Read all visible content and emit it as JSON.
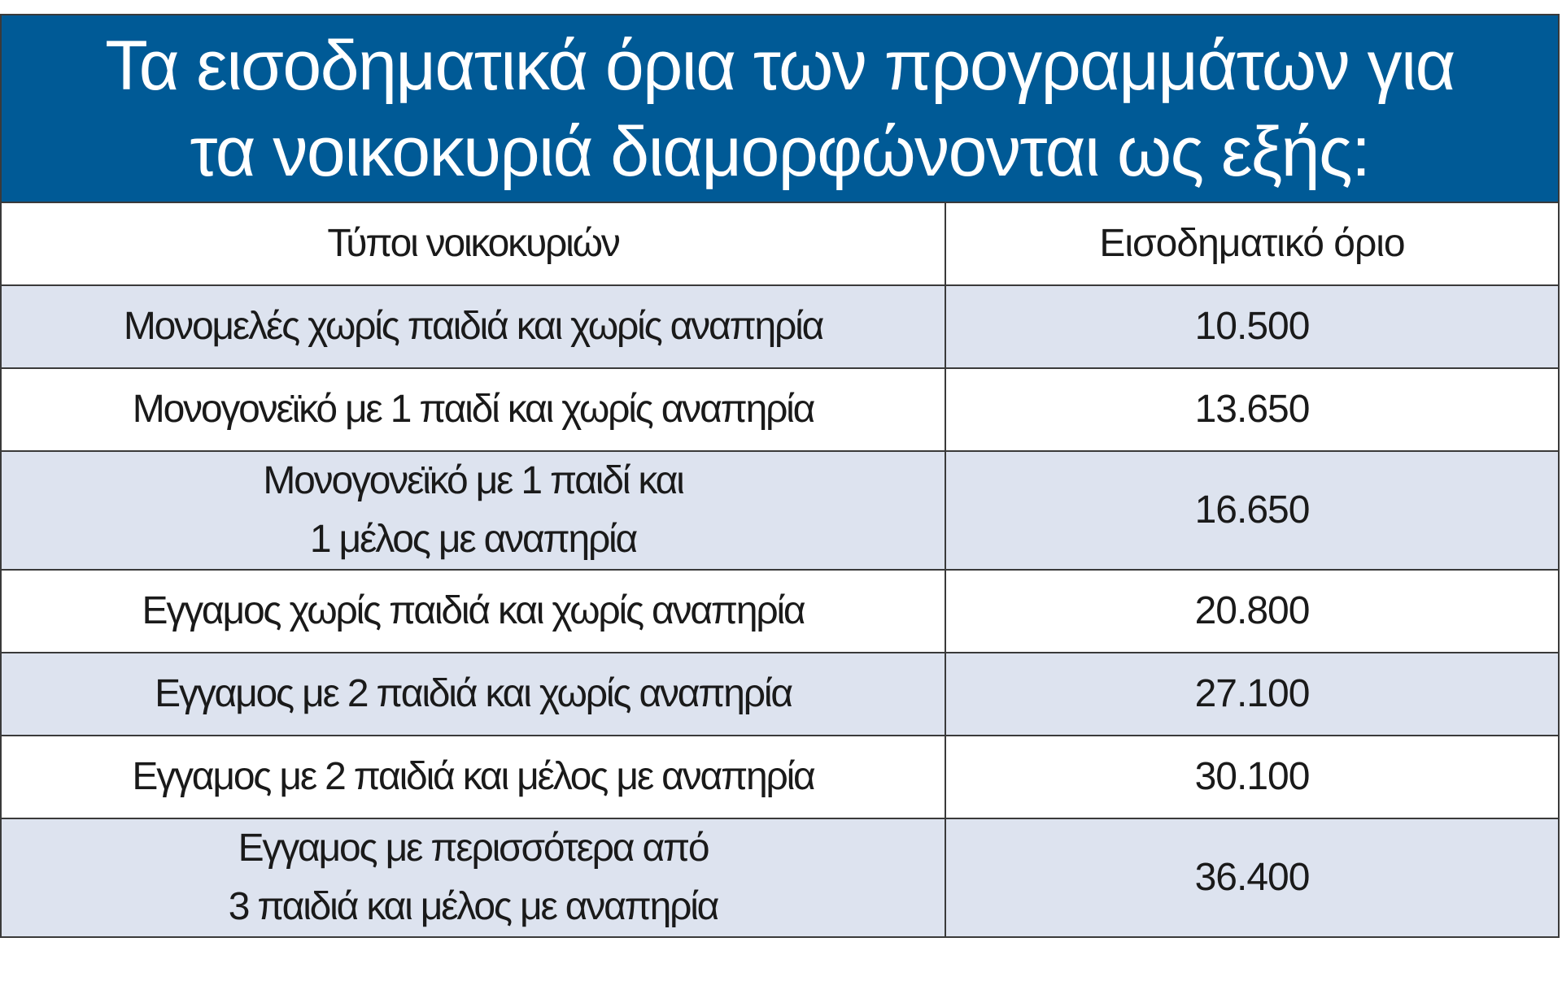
{
  "title": {
    "line1": "Τα εισοδηματικά όρια των προγραμμάτων για",
    "line2": "τα νοικοκυριά διαμορφώνονται ως εξής:"
  },
  "table": {
    "headers": [
      "Τύποι νοικοκυριών",
      "Εισοδηματικό όριο"
    ],
    "rows": [
      {
        "type_lines": [
          "Μονομελές χωρίς παιδιά και χωρίς αναπηρία"
        ],
        "limit": "10.500"
      },
      {
        "type_lines": [
          "Μονογονεϊκό με 1 παιδί και χωρίς αναπηρία"
        ],
        "limit": "13.650"
      },
      {
        "type_lines": [
          "Μονογονεϊκό με 1 παιδί και",
          "1 μέλος με αναπηρία"
        ],
        "limit": "16.650"
      },
      {
        "type_lines": [
          "Εγγαμος χωρίς παιδιά και χωρίς αναπηρία"
        ],
        "limit": "20.800"
      },
      {
        "type_lines": [
          "Εγγαμος με 2 παιδιά και χωρίς αναπηρία"
        ],
        "limit": "27.100"
      },
      {
        "type_lines": [
          "Εγγαμος με 2 παιδιά και μέλος με αναπηρία"
        ],
        "limit": "30.100"
      },
      {
        "type_lines": [
          "Εγγαμος με περισσότερα από",
          "3 παιδιά και μέλος με αναπηρία"
        ],
        "limit": "36.400"
      }
    ]
  },
  "colors": {
    "title_background": "#005a96",
    "shaded_row": "#dde3ef",
    "border": "#3a3a3a"
  }
}
